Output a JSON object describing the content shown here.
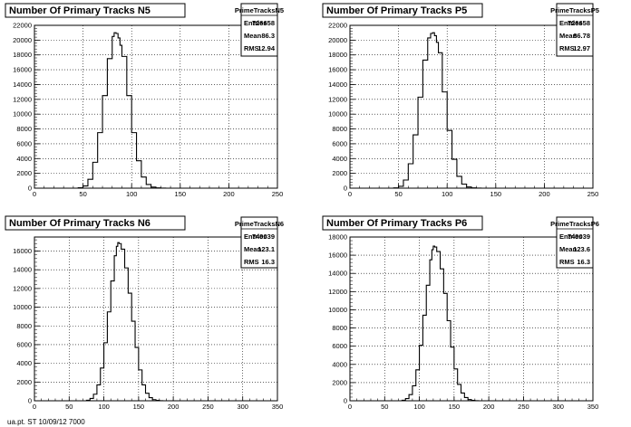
{
  "footer_text": "ua.pt. ST 10/09/12 7000",
  "chart_data": [
    {
      "type": "histogram",
      "title": "Number Of Primary Tracks N5",
      "stats": {
        "name": "PrimeTracksN5",
        "entries": "726658",
        "mean": "86.3",
        "rms": "12.94",
        "entries_label": "Entries",
        "mean_label": "Mean",
        "rms_label": "RMS"
      },
      "xlim": [
        0,
        250
      ],
      "ylim": [
        0,
        22000
      ],
      "xticks": [
        0,
        50,
        100,
        150,
        200,
        250
      ],
      "yticks": [
        0,
        2000,
        4000,
        6000,
        8000,
        10000,
        12000,
        14000,
        16000,
        18000,
        20000,
        22000
      ],
      "grid": true,
      "x": [
        40,
        45,
        50,
        55,
        60,
        65,
        70,
        75,
        80,
        82,
        84,
        86,
        88,
        90,
        95,
        100,
        105,
        110,
        115,
        120,
        125,
        130,
        135
      ],
      "y": [
        0,
        50,
        300,
        1200,
        3500,
        7500,
        12500,
        17500,
        20500,
        21000,
        20900,
        20300,
        19300,
        17800,
        12500,
        7500,
        3700,
        1500,
        500,
        150,
        40,
        10,
        0
      ]
    },
    {
      "type": "histogram",
      "title": "Number Of Primary Tracks P5",
      "stats": {
        "name": "PrimeTracksP5",
        "entries": "726658",
        "mean": "86.78",
        "rms": "12.97",
        "entries_label": "Entries",
        "mean_label": "Mean",
        "rms_label": "RMS"
      },
      "xlim": [
        0,
        250
      ],
      "ylim": [
        0,
        22000
      ],
      "xticks": [
        0,
        50,
        100,
        150,
        200,
        250
      ],
      "yticks": [
        0,
        2000,
        4000,
        6000,
        8000,
        10000,
        12000,
        14000,
        16000,
        18000,
        20000,
        22000
      ],
      "grid": true,
      "x": [
        40,
        45,
        50,
        55,
        60,
        65,
        70,
        75,
        80,
        83,
        85,
        87,
        89,
        91,
        95,
        100,
        105,
        110,
        115,
        120,
        125,
        130,
        135
      ],
      "y": [
        0,
        40,
        250,
        1100,
        3300,
        7200,
        12300,
        17300,
        20300,
        20900,
        21000,
        20600,
        19700,
        18300,
        13000,
        7800,
        3900,
        1600,
        550,
        160,
        45,
        10,
        0
      ]
    },
    {
      "type": "histogram",
      "title": "Number Of Primary Tracks N6",
      "stats": {
        "name": "PrimeTracksN6",
        "entries": "749039",
        "mean": "123.1",
        "rms": "16.3",
        "entries_label": "Entries",
        "mean_label": "Mean",
        "rms_label": "RMS"
      },
      "xlim": [
        0,
        350
      ],
      "ylim": [
        0,
        17500
      ],
      "xticks": [
        0,
        50,
        100,
        150,
        200,
        250,
        300,
        350
      ],
      "yticks": [
        0,
        2000,
        4000,
        6000,
        8000,
        10000,
        12000,
        14000,
        16000
      ],
      "grid": true,
      "x": [
        70,
        75,
        80,
        85,
        90,
        95,
        100,
        105,
        110,
        115,
        118,
        120,
        122,
        125,
        130,
        135,
        140,
        145,
        150,
        155,
        160,
        165,
        170,
        175,
        180,
        185
      ],
      "y": [
        0,
        60,
        250,
        700,
        1700,
        3500,
        6200,
        9500,
        12800,
        15500,
        16500,
        16900,
        16800,
        16200,
        14200,
        11500,
        8500,
        5700,
        3300,
        1700,
        800,
        330,
        120,
        40,
        10,
        0
      ]
    },
    {
      "type": "histogram",
      "title": "Number Of Primary Tracks P6",
      "stats": {
        "name": "PrimeTracksP6",
        "entries": "749039",
        "mean": "123.6",
        "rms": "16.3",
        "entries_label": "Entries",
        "mean_label": "Mean",
        "rms_label": "RMS"
      },
      "xlim": [
        0,
        350
      ],
      "ylim": [
        0,
        18000
      ],
      "xticks": [
        0,
        50,
        100,
        150,
        200,
        250,
        300,
        350
      ],
      "yticks": [
        0,
        2000,
        4000,
        6000,
        8000,
        10000,
        12000,
        14000,
        16000,
        18000
      ],
      "grid": true,
      "x": [
        70,
        75,
        80,
        85,
        90,
        95,
        100,
        105,
        110,
        115,
        118,
        120,
        122,
        125,
        130,
        135,
        140,
        145,
        150,
        155,
        160,
        165,
        170,
        175,
        180,
        185
      ],
      "y": [
        0,
        60,
        240,
        680,
        1650,
        3400,
        6100,
        9400,
        12700,
        15500,
        16600,
        17000,
        16900,
        16400,
        14500,
        11800,
        8800,
        5900,
        3500,
        1800,
        850,
        350,
        130,
        40,
        10,
        0
      ]
    }
  ]
}
